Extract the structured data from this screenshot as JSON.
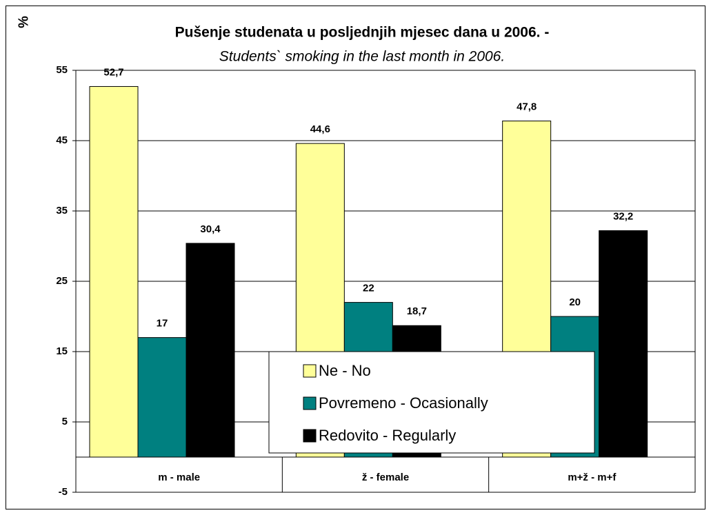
{
  "chart_data": {
    "type": "bar",
    "title": "Pušenje studenata u posljednjih mjesec dana u 2006. -",
    "subtitle": "Students` smoking in the last month in 2006.",
    "y_label": "%",
    "categories": [
      "m - male",
      "ž - female",
      "m+ž - m+f"
    ],
    "series": [
      {
        "name": "Ne - No",
        "color": "#ffff99",
        "values": [
          52.7,
          44.6,
          47.8
        ],
        "value_labels": [
          "52,7",
          "44,6",
          "47,8"
        ]
      },
      {
        "name": "Povremeno - Ocasionally",
        "color": "#008080",
        "values": [
          17,
          22,
          20
        ],
        "value_labels": [
          "17",
          "22",
          "20"
        ]
      },
      {
        "name": "Redovito - Regularly",
        "color": "#000000",
        "values": [
          30.4,
          18.7,
          32.2
        ],
        "value_labels": [
          "30,4",
          "18,7",
          "32,2"
        ]
      }
    ],
    "ylim": [
      -5,
      55
    ],
    "yticks": [
      -5,
      5,
      15,
      25,
      35,
      45,
      55
    ],
    "grid": true
  }
}
